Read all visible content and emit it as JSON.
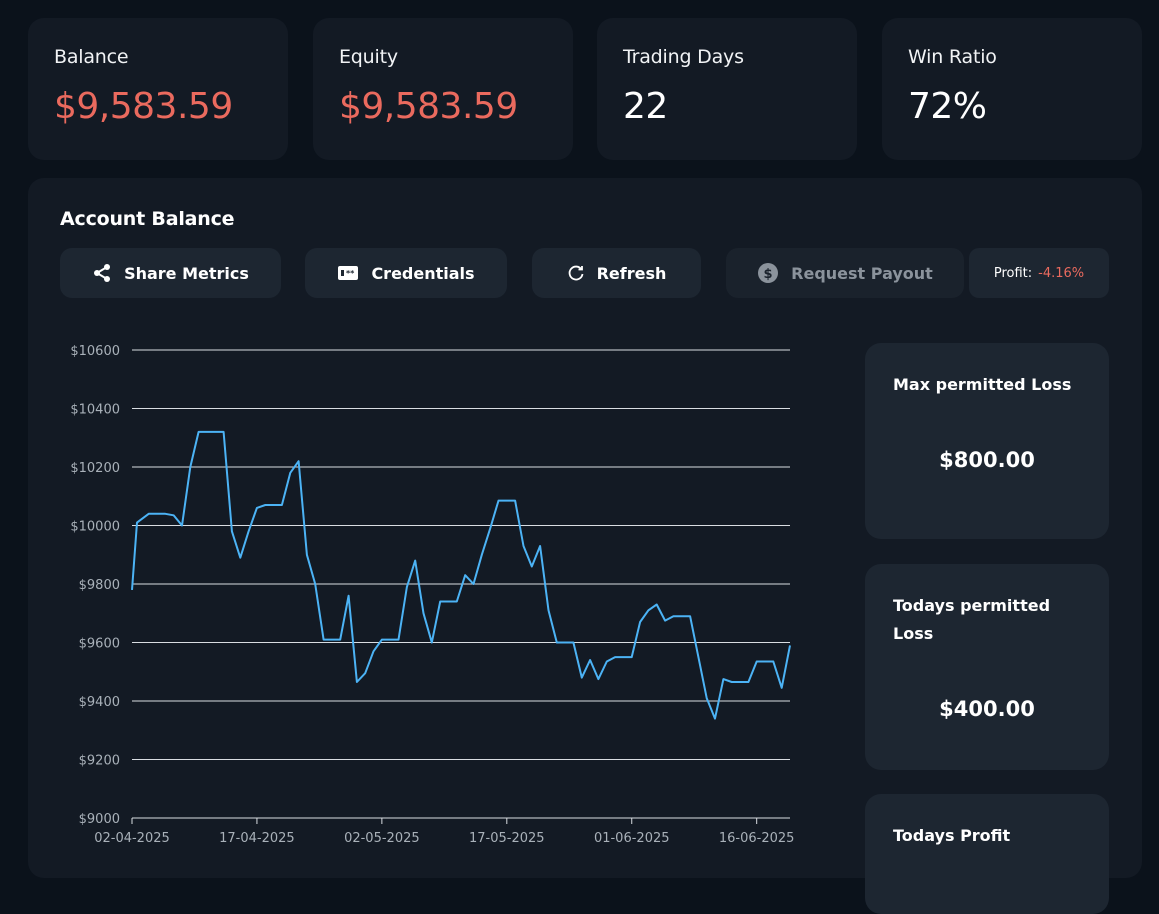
{
  "stats": [
    {
      "label": "Balance",
      "value": "$9,583.59",
      "tone": "negative"
    },
    {
      "label": "Equity",
      "value": "$9,583.59",
      "tone": "negative"
    },
    {
      "label": "Trading Days",
      "value": "22",
      "tone": "neutral"
    },
    {
      "label": "Win Ratio",
      "value": "72%",
      "tone": "neutral"
    }
  ],
  "panel": {
    "title": "Account Balance",
    "buttons": {
      "share": "Share Metrics",
      "credentials": "Credentials",
      "refresh": "Refresh",
      "payout": "Request Payout"
    },
    "profit_label": "Profit:",
    "profit_value": "-4.16%"
  },
  "side_cards": {
    "max_loss": {
      "title": "Max permitted Loss",
      "value": "$800.00"
    },
    "today_loss": {
      "title": "Todays permitted Loss",
      "value": "$400.00"
    },
    "today_profit": {
      "title": "Todays Profit"
    }
  },
  "colors": {
    "negative": "#ea6a5e",
    "line": "#4cb3f5",
    "grid": "#d9dde2"
  },
  "chart_data": {
    "type": "line",
    "title": "Account Balance",
    "ylim": [
      9000,
      10600
    ],
    "yticks": [
      9000,
      9200,
      9400,
      9600,
      9800,
      10000,
      10200,
      10400,
      10600
    ],
    "ytick_labels": [
      "$9000",
      "$9200",
      "$9400",
      "$9600",
      "$9800",
      "$10000",
      "$10200",
      "$10400",
      "$10600"
    ],
    "xtick_labels": [
      "02-04-2025",
      "17-04-2025",
      "02-05-2025",
      "17-05-2025",
      "01-06-2025",
      "16-06-2025"
    ],
    "xtick_index": [
      0,
      15,
      30,
      45,
      60,
      75
    ],
    "x_count": 79,
    "grid": true,
    "series": [
      {
        "name": "Balance",
        "points": [
          [
            0,
            9780
          ],
          [
            0.6,
            10010
          ],
          [
            2,
            10040
          ],
          [
            4,
            10040
          ],
          [
            5,
            10035
          ],
          [
            6,
            10000
          ],
          [
            7,
            10200
          ],
          [
            8,
            10320
          ],
          [
            11,
            10320
          ],
          [
            12,
            9980
          ],
          [
            13,
            9890
          ],
          [
            14,
            9980
          ],
          [
            15,
            10060
          ],
          [
            16,
            10070
          ],
          [
            18,
            10070
          ],
          [
            19,
            10180
          ],
          [
            20,
            10220
          ],
          [
            21,
            9900
          ],
          [
            22,
            9800
          ],
          [
            23,
            9610
          ],
          [
            25,
            9610
          ],
          [
            26,
            9760
          ],
          [
            27,
            9465
          ],
          [
            28,
            9495
          ],
          [
            29,
            9570
          ],
          [
            30,
            9610
          ],
          [
            32,
            9610
          ],
          [
            33,
            9790
          ],
          [
            34,
            9880
          ],
          [
            35,
            9700
          ],
          [
            36,
            9600
          ],
          [
            37,
            9740
          ],
          [
            39,
            9740
          ],
          [
            40,
            9830
          ],
          [
            41,
            9800
          ],
          [
            42,
            9900
          ],
          [
            43,
            9990
          ],
          [
            44,
            10085
          ],
          [
            46,
            10085
          ],
          [
            47,
            9930
          ],
          [
            48,
            9860
          ],
          [
            49,
            9930
          ],
          [
            50,
            9710
          ],
          [
            51,
            9600
          ],
          [
            53,
            9600
          ],
          [
            54,
            9480
          ],
          [
            55,
            9540
          ],
          [
            56,
            9475
          ],
          [
            57,
            9535
          ],
          [
            58,
            9550
          ],
          [
            60,
            9550
          ],
          [
            61,
            9670
          ],
          [
            62,
            9710
          ],
          [
            63,
            9730
          ],
          [
            64,
            9675
          ],
          [
            65,
            9690
          ],
          [
            67,
            9690
          ],
          [
            68,
            9550
          ],
          [
            69,
            9410
          ],
          [
            70,
            9340
          ],
          [
            71,
            9475
          ],
          [
            72,
            9465
          ],
          [
            74,
            9465
          ],
          [
            75,
            9535
          ],
          [
            77,
            9535
          ],
          [
            78,
            9445
          ],
          [
            79,
            9590
          ]
        ]
      }
    ]
  }
}
